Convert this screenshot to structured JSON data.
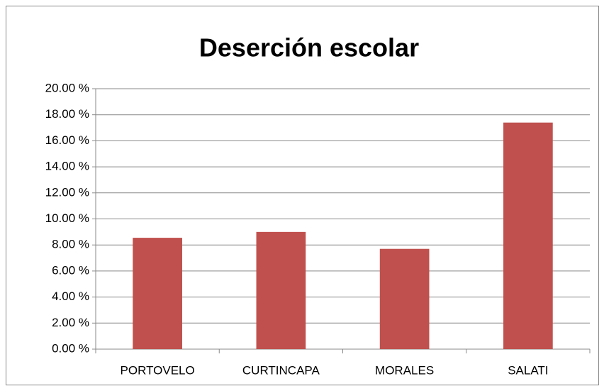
{
  "chart_data": {
    "type": "bar",
    "title": "Deserción escolar",
    "categories": [
      "PORTOVELO",
      "CURTINCAPA",
      "MORALES",
      "SALATI"
    ],
    "values": [
      8.55,
      9.0,
      7.7,
      17.4
    ],
    "color": "#c0504d",
    "ylim": [
      0,
      20
    ],
    "yticks": [
      {
        "value": 0,
        "label": "0.00 %"
      },
      {
        "value": 2,
        "label": "2.00 %"
      },
      {
        "value": 4,
        "label": "4.00 %"
      },
      {
        "value": 6,
        "label": "6.00 %"
      },
      {
        "value": 8,
        "label": "8.00 %"
      },
      {
        "value": 10,
        "label": "10.00 %"
      },
      {
        "value": 12,
        "label": "12.00 %"
      },
      {
        "value": 14,
        "label": "14.00 %"
      },
      {
        "value": 16,
        "label": "16.00 %"
      },
      {
        "value": 18,
        "label": "18.00 %"
      },
      {
        "value": 20,
        "label": "20.00 %"
      }
    ],
    "grid": true
  }
}
